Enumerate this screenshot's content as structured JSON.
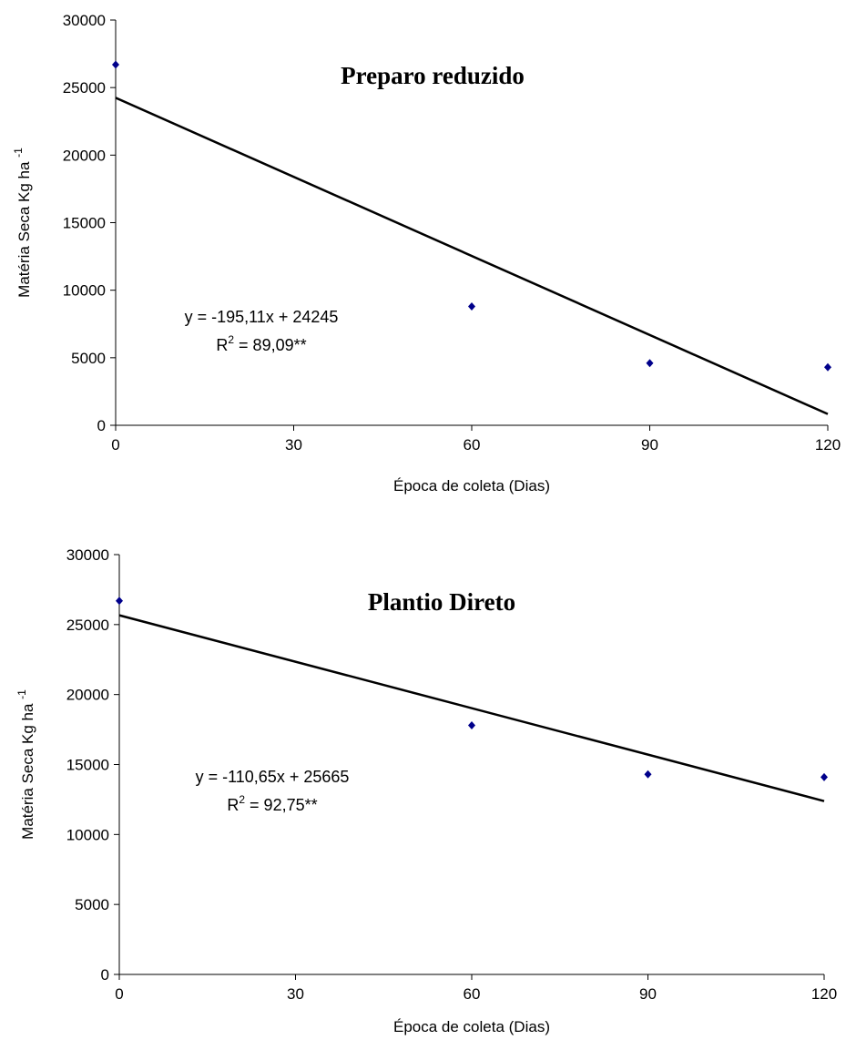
{
  "chart_data": [
    {
      "type": "scatter",
      "title": "Preparo reduzido",
      "xlabel": "Época de coleta (Dias)",
      "ylabel": "Matéria Seca Kg ha",
      "ylabel_sup": "-1",
      "xlim": [
        0,
        120
      ],
      "ylim": [
        0,
        30000
      ],
      "xticks": [
        0,
        30,
        60,
        90,
        120
      ],
      "yticks": [
        0,
        5000,
        10000,
        15000,
        20000,
        25000,
        30000
      ],
      "grid": false,
      "series": [
        {
          "x": [
            0,
            60,
            90,
            120
          ],
          "y": [
            26700,
            8800,
            4600,
            4300
          ],
          "color": "#00008B"
        }
      ],
      "trendline": {
        "slope": -195.11,
        "intercept": 24245,
        "x_range": [
          0,
          120
        ]
      },
      "equation": "y = -195,11x + 24245",
      "r2_prefix": "R",
      "r2_sup": "2",
      "r2_value": " = 89,09**"
    },
    {
      "type": "scatter",
      "title": "Plantio Direto",
      "xlabel": "Época de coleta (Dias)",
      "ylabel": "Matéria Seca Kg ha",
      "ylabel_sup": "-1",
      "xlim": [
        0,
        120
      ],
      "ylim": [
        0,
        30000
      ],
      "xticks": [
        0,
        30,
        60,
        90,
        120
      ],
      "yticks": [
        0,
        5000,
        10000,
        15000,
        20000,
        25000,
        30000
      ],
      "grid": false,
      "series": [
        {
          "x": [
            0,
            60,
            90,
            120
          ],
          "y": [
            26700,
            17800,
            14300,
            14100
          ],
          "color": "#00008B"
        }
      ],
      "trendline": {
        "slope": -110.65,
        "intercept": 25665,
        "x_range": [
          0,
          120
        ]
      },
      "equation": "y = -110,65x + 25665",
      "r2_prefix": "R",
      "r2_sup": "2",
      "r2_value": " = 92,75**"
    }
  ]
}
